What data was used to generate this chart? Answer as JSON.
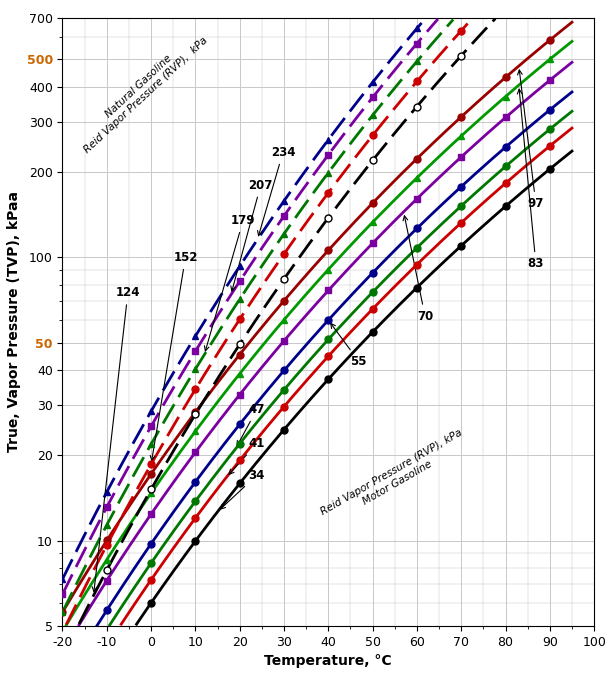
{
  "xlabel": "Temperature, °C",
  "ylabel": "True, Vapor Pressure (TVP), kPaa",
  "xlim": [
    -20,
    100
  ],
  "ylim": [
    5,
    700
  ],
  "motor_rvp": [
    34,
    41,
    47,
    55,
    70,
    83,
    97
  ],
  "motor_line_colors": [
    "#000000",
    "#CC0000",
    "#007700",
    "#00008B",
    "#7B00A0",
    "#009900",
    "#990000"
  ],
  "motor_markers": [
    "o",
    "o",
    "o",
    "o",
    "s",
    "^",
    "o"
  ],
  "motor_mfc": [
    "#000000",
    "#CC0000",
    "#007700",
    "#00008B",
    "#7B00A0",
    "#009900",
    "#990000"
  ],
  "natural_rvp": [
    124,
    152,
    179,
    207,
    234
  ],
  "natural_line_colors": [
    "#000000",
    "#CC0000",
    "#007700",
    "#7B00A0",
    "#00008B"
  ],
  "natural_markers": [
    "o",
    "o",
    "^",
    "s",
    "^"
  ],
  "natural_mfc": [
    "white",
    "#CC0000",
    "#007700",
    "#7B00A0",
    "#00008B"
  ],
  "grid_color": "#c8c8c8",
  "yticks_orange": [
    "50",
    "500"
  ]
}
